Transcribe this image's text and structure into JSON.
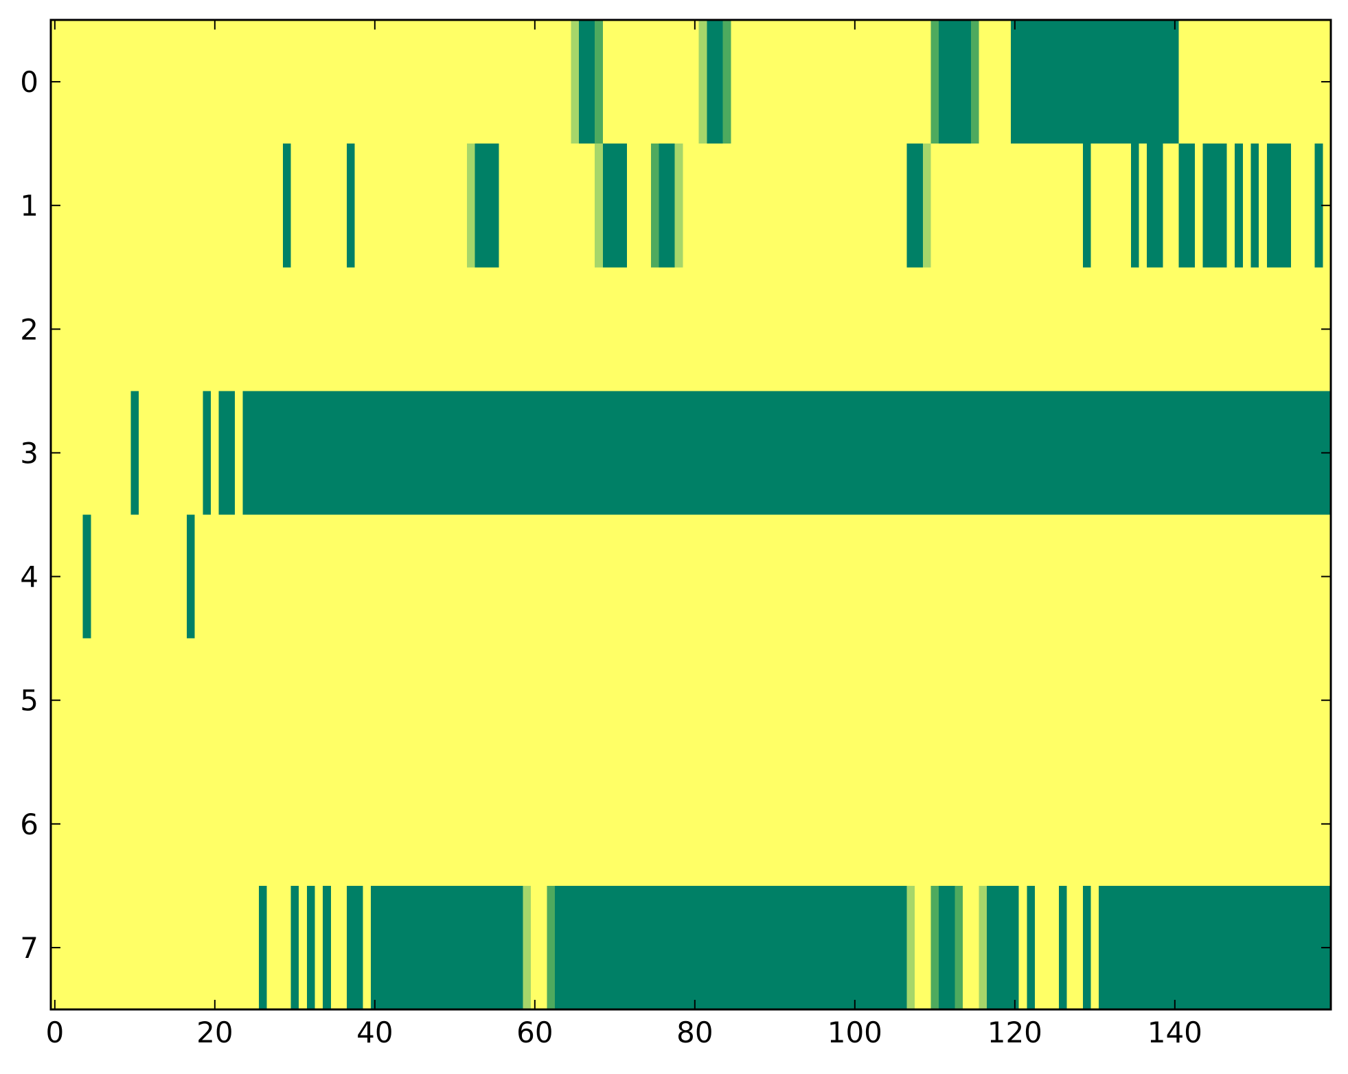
{
  "chart_data": {
    "type": "heatmap",
    "title": "",
    "xlabel": "",
    "ylabel": "",
    "colors": {
      "0": "#ffff66",
      "1": "#a6d66a",
      "2": "#4eaa5e",
      "3": "#008066"
    },
    "xlim": [
      -0.5,
      159.5
    ],
    "ylim": [
      -0.5,
      7.5
    ],
    "x_ticks": [
      "0",
      "20",
      "40",
      "60",
      "80",
      "100",
      "120",
      "140"
    ],
    "y_ticks": [
      "0",
      "1",
      "2",
      "3",
      "4",
      "5",
      "6",
      "7"
    ],
    "n_columns": 160,
    "rows": [
      {
        "row": 0,
        "segments": [
          [
            65,
            65,
            1
          ],
          [
            66,
            67,
            3
          ],
          [
            68,
            68,
            2
          ],
          [
            81,
            81,
            1
          ],
          [
            82,
            83,
            3
          ],
          [
            84,
            84,
            2
          ],
          [
            110,
            110,
            2
          ],
          [
            111,
            114,
            3
          ],
          [
            115,
            115,
            2
          ],
          [
            120,
            140,
            3
          ]
        ]
      },
      {
        "row": 1,
        "segments": [
          [
            29,
            29,
            3
          ],
          [
            37,
            37,
            3
          ],
          [
            52,
            52,
            1
          ],
          [
            53,
            55,
            3
          ],
          [
            68,
            68,
            1
          ],
          [
            69,
            71,
            3
          ],
          [
            75,
            75,
            2
          ],
          [
            76,
            77,
            3
          ],
          [
            78,
            78,
            1
          ],
          [
            107,
            108,
            3
          ],
          [
            109,
            109,
            1
          ],
          [
            129,
            129,
            3
          ],
          [
            135,
            135,
            3
          ],
          [
            137,
            138,
            3
          ],
          [
            141,
            142,
            3
          ],
          [
            144,
            146,
            3
          ],
          [
            148,
            148,
            3
          ],
          [
            150,
            150,
            3
          ],
          [
            152,
            154,
            3
          ],
          [
            158,
            158,
            3
          ]
        ]
      },
      {
        "row": 2,
        "segments": []
      },
      {
        "row": 3,
        "segments": [
          [
            10,
            10,
            3
          ],
          [
            19,
            19,
            3
          ],
          [
            21,
            22,
            3
          ],
          [
            24,
            159,
            3
          ]
        ]
      },
      {
        "row": 4,
        "segments": [
          [
            4,
            4,
            3
          ],
          [
            17,
            17,
            3
          ]
        ]
      },
      {
        "row": 5,
        "segments": []
      },
      {
        "row": 6,
        "segments": []
      },
      {
        "row": 7,
        "segments": [
          [
            26,
            26,
            3
          ],
          [
            30,
            30,
            3
          ],
          [
            32,
            32,
            3
          ],
          [
            34,
            34,
            3
          ],
          [
            37,
            38,
            3
          ],
          [
            40,
            58,
            3
          ],
          [
            59,
            59,
            1
          ],
          [
            62,
            62,
            2
          ],
          [
            63,
            106,
            3
          ],
          [
            107,
            107,
            1
          ],
          [
            110,
            110,
            2
          ],
          [
            111,
            112,
            3
          ],
          [
            113,
            113,
            2
          ],
          [
            116,
            116,
            1
          ],
          [
            117,
            120,
            3
          ],
          [
            122,
            122,
            3
          ],
          [
            126,
            126,
            3
          ],
          [
            129,
            129,
            3
          ],
          [
            131,
            159,
            3
          ]
        ]
      }
    ]
  }
}
